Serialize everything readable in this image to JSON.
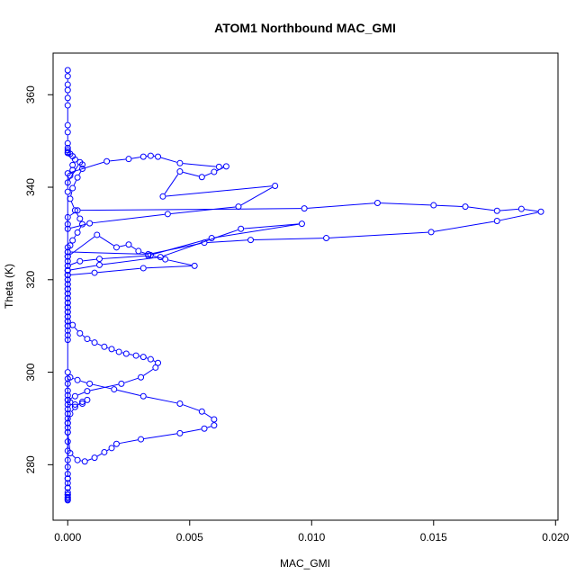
{
  "chart_data": {
    "type": "scatter",
    "title": "ATOM1 Northbound MAC_GMI",
    "xlabel": "MAC_GMI",
    "ylabel": "Theta (K)",
    "xlim": [
      -0.0006,
      0.0201
    ],
    "ylim": [
      268,
      369
    ],
    "xticks": [
      0.0,
      0.005,
      0.01,
      0.015,
      0.02
    ],
    "xtick_labels": [
      "0.000",
      "0.005",
      "0.010",
      "0.015",
      "0.020"
    ],
    "yticks": [
      280,
      300,
      320,
      340,
      360
    ],
    "ytick_labels": [
      "280",
      "300",
      "320",
      "340",
      "360"
    ],
    "grid": false,
    "legend": "none",
    "marker": "open-circle",
    "connected": true,
    "series_color": "#0000ff",
    "x": [
      0.0,
      0.0,
      0.0,
      0.0,
      0.0,
      0.0,
      0.0,
      0.0,
      0.0,
      0.0,
      0.0,
      0.0,
      0.0,
      0.0001,
      0.0002,
      0.0003,
      0.0002,
      0.0002,
      0.0001,
      0.0,
      0.0005,
      0.0006,
      0.0006,
      0.0004,
      0.0002,
      0.0001,
      0.0003,
      0.0005,
      0.0006,
      0.0004,
      0.0002,
      0.0001,
      0.0,
      0.0,
      0.0,
      0.0,
      0.0,
      0.0,
      0.0,
      0.0,
      0.0,
      0.0,
      0.0,
      0.0,
      0.0,
      0.0,
      0.0,
      0.0,
      0.0,
      0.0,
      0.0002,
      0.0005,
      0.0008,
      0.0011,
      0.0015,
      0.0018,
      0.0021,
      0.0024,
      0.0028,
      0.0031,
      0.0034,
      0.0037,
      0.0036,
      0.003,
      0.0022,
      0.0008,
      0.0003,
      0.0,
      0.0,
      0.0,
      0.0,
      0.0,
      0.0,
      0.0,
      0.0,
      0.0001,
      0.0004,
      0.0007,
      0.0011,
      0.0015,
      0.0018,
      0.002,
      0.003,
      0.0046,
      0.0056,
      0.006,
      0.006,
      0.0055,
      0.0046,
      0.0031,
      0.0019,
      0.0009,
      0.0004,
      0.0001,
      0.0,
      0.0,
      0.0,
      0.0,
      0.0,
      0.0001,
      0.0003,
      0.0006,
      0.0008,
      0.0006,
      0.0003,
      0.0001,
      0.0,
      0.0,
      0.0,
      0.0,
      0.0,
      0.0,
      0.0,
      0.0,
      0.0,
      0.0,
      0.0,
      0.0,
      0.0,
      0.0,
      0.0,
      0.0,
      0.0,
      0.0,
      0.0,
      0.0,
      0.0,
      0.0,
      0.0,
      0.0,
      0.0016,
      0.0025,
      0.0031,
      0.0034,
      0.0037,
      0.0046,
      0.0062,
      0.0065,
      0.006,
      0.0055,
      0.0046,
      0.0039,
      0.0085,
      0.007,
      0.0041,
      0.0009,
      0.0,
      0.0,
      0.0004,
      0.0097,
      0.0127,
      0.015,
      0.0163,
      0.0176,
      0.0186,
      0.0194,
      0.0176,
      0.0149,
      0.0106,
      0.0075,
      0.0056,
      0.0033,
      0.0,
      0.0,
      0.0012,
      0.002,
      0.0025,
      0.0029,
      0.0034,
      0.004,
      0.0052,
      0.0031,
      0.0011,
      0.0,
      0.0,
      0.0013,
      0.0038,
      0.0071,
      0.0096,
      0.0059,
      0.0033,
      0.0013,
      0.0005,
      0.0,
      0.0,
      0.0,
      0.0,
      0.0,
      0.0,
      0.0,
      0.0,
      0.0,
      0.0,
      0.0,
      0.0,
      0.0,
      0.0,
      0.0,
      0.0,
      0.0
    ],
    "y": [
      365.3,
      364.0,
      362.2,
      361.0,
      359.3,
      357.7,
      353.4,
      351.9,
      349.5,
      348.5,
      348.0,
      347.6,
      347.4,
      347.2,
      346.7,
      346.0,
      344.8,
      343.7,
      342.5,
      341.0,
      345.4,
      344.9,
      344.0,
      342.1,
      339.8,
      337.5,
      335.0,
      333.2,
      332.0,
      330.2,
      328.5,
      327.4,
      327.0,
      326.0,
      325.0,
      324.0,
      323.0,
      322.0,
      321.0,
      320.0,
      319.0,
      318.0,
      317.0,
      316.0,
      315.0,
      314.0,
      313.0,
      312.0,
      311.0,
      310.0,
      310.2,
      308.4,
      307.2,
      306.4,
      305.5,
      305.0,
      304.4,
      304.0,
      303.6,
      303.3,
      302.8,
      302.0,
      301.0,
      298.9,
      297.5,
      295.9,
      294.8,
      294.0,
      293.0,
      292.0,
      291.0,
      290.0,
      289.0,
      288.0,
      287.0,
      282.5,
      281.0,
      280.7,
      281.5,
      282.7,
      283.6,
      284.5,
      285.5,
      286.8,
      287.8,
      288.5,
      289.8,
      291.5,
      293.2,
      294.8,
      296.3,
      297.5,
      298.3,
      298.9,
      298.6,
      297.5,
      296.0,
      295.0,
      294.0,
      293.5,
      293.0,
      293.2,
      294.0,
      293.6,
      292.5,
      291.0,
      289.0,
      287.0,
      285.0,
      283.0,
      281.0,
      279.5,
      278.0,
      277.0,
      276.0,
      275.0,
      274.0,
      273.5,
      273.0,
      272.5,
      272.3,
      272.8,
      273.5,
      275.0,
      277.0,
      300.0,
      322.0,
      332.0,
      339.0,
      343.0,
      345.6,
      346.1,
      346.6,
      346.8,
      346.6,
      345.2,
      344.4,
      344.5,
      343.3,
      342.2,
      343.4,
      338.0,
      340.3,
      335.8,
      334.2,
      332.2,
      331.0,
      333.5,
      335.0,
      335.4,
      336.6,
      336.1,
      335.8,
      334.9,
      335.3,
      334.7,
      332.7,
      330.3,
      329.0,
      328.6,
      328.0,
      325.5,
      326.0,
      325.0,
      329.7,
      327.0,
      327.6,
      326.2,
      325.3,
      324.4,
      323.0,
      322.5,
      321.5,
      321.0,
      322.0,
      323.2,
      324.9,
      331.0,
      332.1,
      329.0,
      325.2,
      324.5,
      324.0,
      323.0,
      322.0,
      321.0,
      320.0,
      319.0,
      318.0,
      317.0,
      316.0,
      315.0,
      314.0,
      313.0,
      312.0,
      311.0,
      310.0,
      309.0,
      308.0,
      307.0
    ]
  }
}
